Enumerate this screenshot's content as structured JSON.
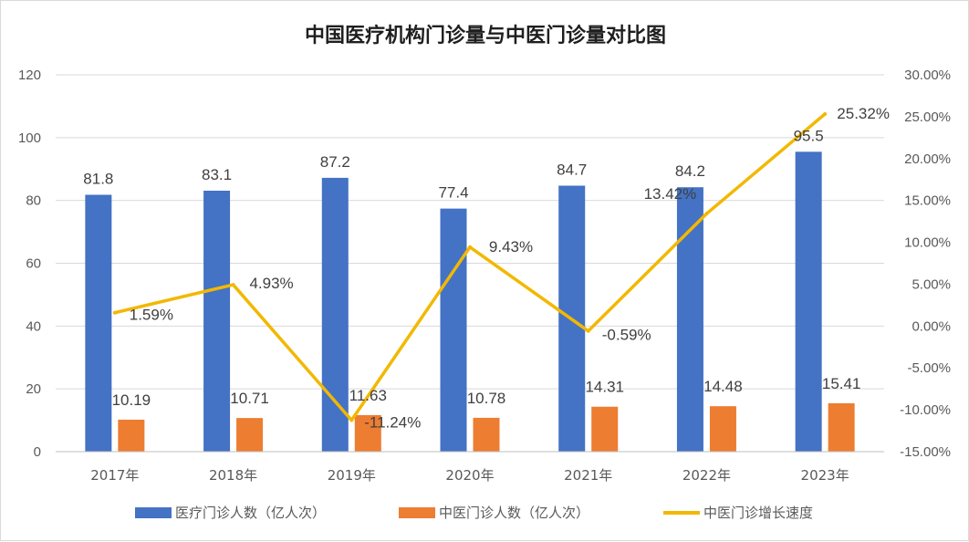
{
  "chart_data": {
    "type": "bar",
    "title": "中国医疗机构门诊量与中医门诊量对比图",
    "categories": [
      "2017年",
      "2018年",
      "2019年",
      "2020年",
      "2021年",
      "2022年",
      "2023年"
    ],
    "series": [
      {
        "name": "医疗门诊人数（亿人次）",
        "type": "bar",
        "axis": "left",
        "color": "#4472c4",
        "values": [
          81.8,
          83.1,
          87.2,
          77.4,
          84.7,
          84.2,
          95.5
        ],
        "labels": [
          "81.8",
          "83.1",
          "87.2",
          "77.4",
          "84.7",
          "84.2",
          "95.5"
        ]
      },
      {
        "name": "中医门诊人数（亿人次）",
        "type": "bar",
        "axis": "left",
        "color": "#ed7d31",
        "values": [
          10.19,
          10.71,
          11.63,
          10.78,
          14.31,
          14.48,
          15.41
        ],
        "labels": [
          "10.19",
          "10.71",
          "11.63",
          "10.78",
          "14.31",
          "14.48",
          "15.41"
        ]
      },
      {
        "name": "中医门诊增长速度",
        "type": "line",
        "axis": "right",
        "color": "#f2b800",
        "values": [
          1.59,
          4.93,
          -11.24,
          9.43,
          -0.59,
          13.42,
          25.32
        ],
        "labels": [
          "1.59%",
          "4.93%",
          "-11.24%",
          "9.43%",
          "-0.59%",
          "13.42%",
          "25.32%"
        ]
      }
    ],
    "ylim": [
      0,
      120
    ],
    "yticks": [
      "0",
      "20",
      "40",
      "60",
      "80",
      "100",
      "120"
    ],
    "y2lim": [
      -15,
      30
    ],
    "y2ticks": [
      "-15.00%",
      "-10.00%",
      "-5.00%",
      "0.00%",
      "5.00%",
      "10.00%",
      "15.00%",
      "20.00%",
      "25.00%",
      "30.00%"
    ],
    "grid": true,
    "legend": "bottom"
  }
}
